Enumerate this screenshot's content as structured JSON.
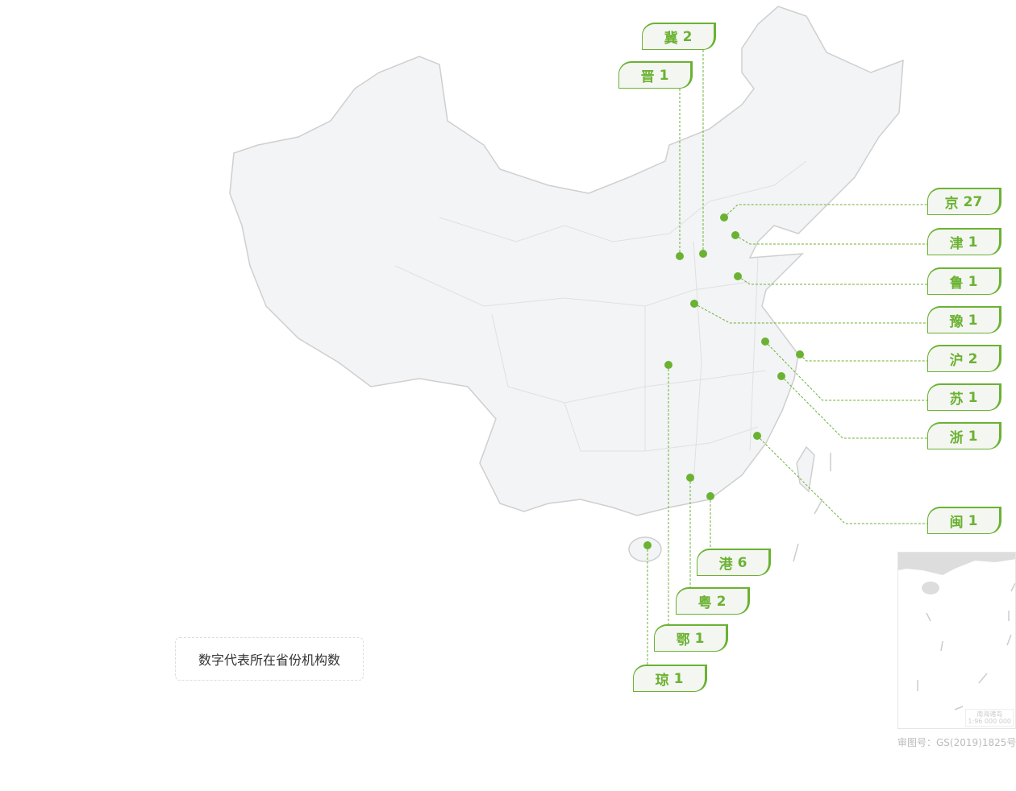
{
  "colors": {
    "accent": "#6bb233",
    "land": "#f3f4f5",
    "border": "#cfcfcf"
  },
  "legend": {
    "text": "数字代表所在省份机构数"
  },
  "inset": {
    "label": "南海诸岛",
    "scale": "1:96 000 000"
  },
  "caption": "审图号：GS(2019)1825号",
  "provinces": [
    {
      "name": "冀",
      "count": "2"
    },
    {
      "name": "晋",
      "count": "1"
    },
    {
      "name": "京",
      "count": "27"
    },
    {
      "name": "津",
      "count": "1"
    },
    {
      "name": "鲁",
      "count": "1"
    },
    {
      "name": "豫",
      "count": "1"
    },
    {
      "name": "沪",
      "count": "2"
    },
    {
      "name": "苏",
      "count": "1"
    },
    {
      "name": "浙",
      "count": "1"
    },
    {
      "name": "闽",
      "count": "1"
    },
    {
      "name": "港",
      "count": "6"
    },
    {
      "name": "粤",
      "count": "2"
    },
    {
      "name": "鄂",
      "count": "1"
    },
    {
      "name": "琼",
      "count": "1"
    }
  ]
}
